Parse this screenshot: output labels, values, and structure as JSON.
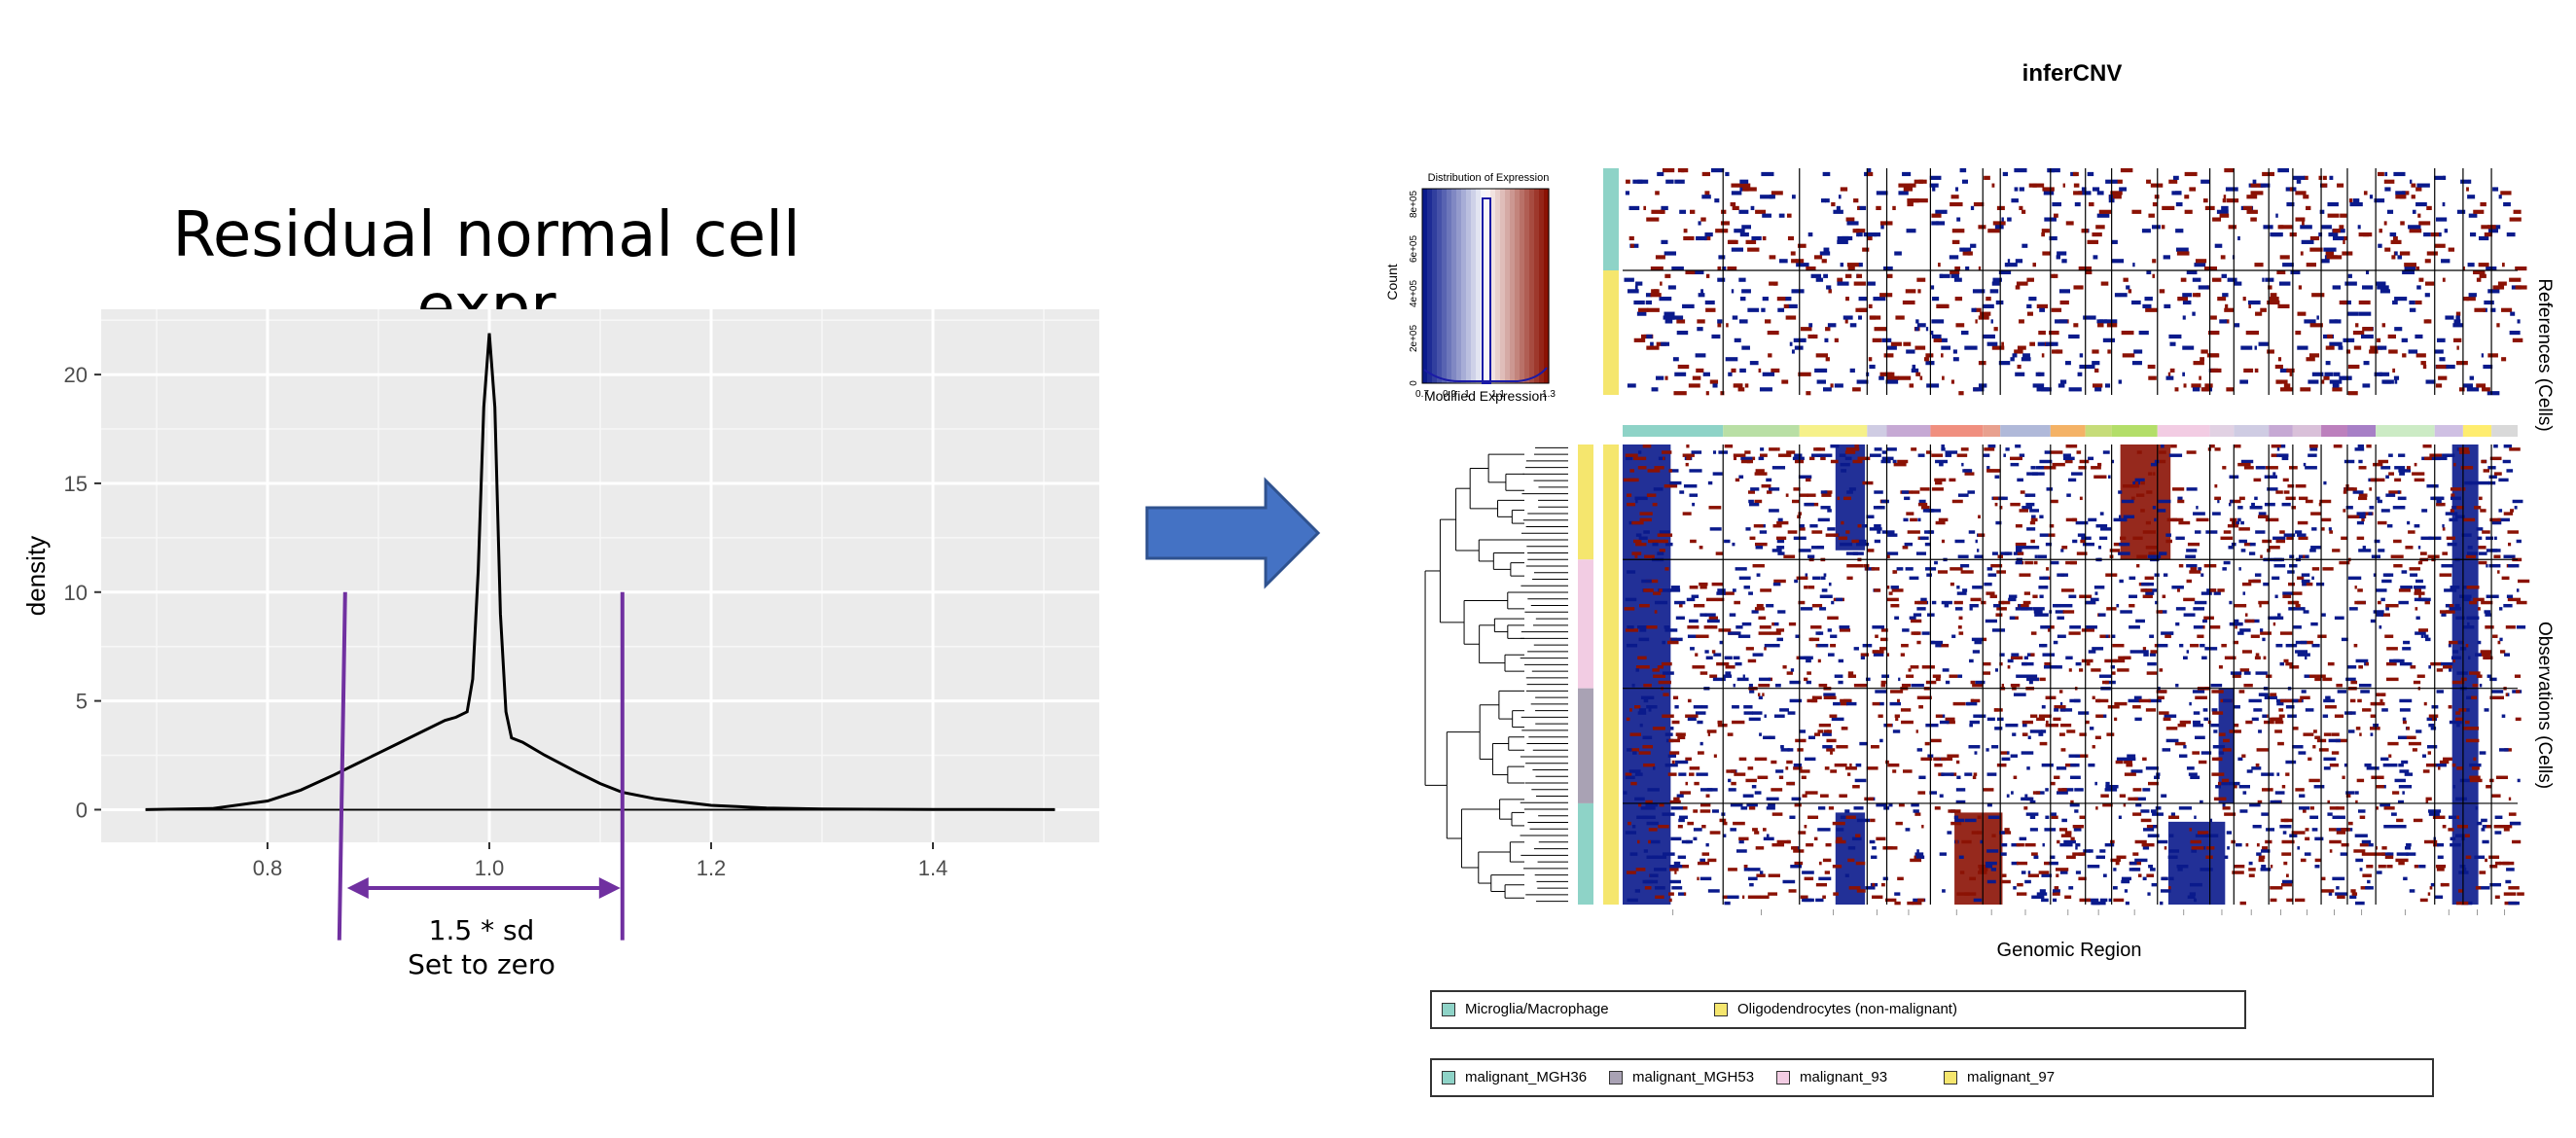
{
  "left_chart": {
    "title": "Residual normal cell expr",
    "ylabel": "density",
    "annotation_line1": "1.5 * sd",
    "annotation_line2": "Set to zero"
  },
  "right_panel": {
    "title": "inferCNV",
    "xlabel": "Genomic Region",
    "ylabel_top": "References (Cells)",
    "ylabel_bottom": "Observations (Cells)",
    "colorkey": {
      "title": "Distribution of Expression",
      "ylabel": "Count",
      "xlabel": "Modified Expression",
      "x_ticks": [
        "0.7",
        "0.9",
        "1",
        "1.1",
        "1.3"
      ],
      "y_ticks": [
        "0",
        "2e+05",
        "4e+05",
        "6e+05",
        "8e+05"
      ]
    },
    "legend_references": [
      {
        "label": "Microglia/Macrophage",
        "color": "#8ed3c7"
      },
      {
        "label": "Oligodendrocytes (non-malignant)",
        "color": "#f5e66e"
      }
    ],
    "legend_observations": [
      {
        "label": "malignant_MGH36",
        "color": "#8ed3c7"
      },
      {
        "label": "malignant_MGH53",
        "color": "#a9a2b4"
      },
      {
        "label": "malignant_93",
        "color": "#f2cce3"
      },
      {
        "label": "malignant_97",
        "color": "#f5e66e"
      }
    ],
    "colors": {
      "low": "#0a1a8c",
      "high": "#8b1204",
      "neutral": "#ffffff"
    }
  },
  "chart_data": [
    {
      "type": "line",
      "title": "Residual normal cell expr",
      "xlabel": "",
      "ylabel": "density",
      "xlim": [
        0.65,
        1.55
      ],
      "ylim": [
        -1.5,
        23
      ],
      "x_ticks": [
        0.8,
        1.0,
        1.2,
        1.4
      ],
      "x_tick_labels": [
        "0.8",
        "1.0",
        "1.2",
        "1.4"
      ],
      "y_ticks": [
        0,
        5,
        10,
        15,
        20
      ],
      "y_tick_labels": [
        "0",
        "5",
        "10",
        "15",
        "20"
      ],
      "grid": true,
      "series": [
        {
          "x": [
            0.69,
            0.75,
            0.8,
            0.83,
            0.86,
            0.88,
            0.9,
            0.92,
            0.94,
            0.96,
            0.97,
            0.98,
            0.985,
            0.99,
            0.995,
            1.0,
            1.005,
            1.01,
            1.015,
            1.02,
            1.03,
            1.05,
            1.08,
            1.1,
            1.12,
            1.15,
            1.2,
            1.25,
            1.3,
            1.4,
            1.51
          ],
          "y": [
            0,
            0.05,
            0.4,
            0.9,
            1.6,
            2.1,
            2.6,
            3.1,
            3.6,
            4.1,
            4.25,
            4.5,
            6.0,
            11.0,
            18.5,
            21.9,
            18.5,
            9.0,
            4.5,
            3.3,
            3.1,
            2.5,
            1.7,
            1.2,
            0.8,
            0.5,
            0.2,
            0.08,
            0.03,
            0.01,
            0.0
          ]
        }
      ],
      "annotations": [
        {
          "type": "vline",
          "x": 0.87,
          "y_range": [
            -6,
            10
          ],
          "color": "#7030a0"
        },
        {
          "type": "vline",
          "x": 1.12,
          "y_range": [
            -6,
            10
          ],
          "color": "#7030a0"
        },
        {
          "type": "double-arrow",
          "x_range": [
            0.87,
            1.12
          ],
          "y": -3.6,
          "color": "#7030a0"
        }
      ]
    },
    {
      "type": "heatmap",
      "title": "inferCNV",
      "xlabel": "Genomic Region",
      "ylabel": "References (Cells)",
      "reference_groups": [
        "Microglia/Macrophage",
        "Oligodendrocytes (non-malignant)"
      ],
      "observation_groups": [
        "malignant_97",
        "malignant_93",
        "malignant_MGH53",
        "malignant_MGH36"
      ]
    }
  ]
}
